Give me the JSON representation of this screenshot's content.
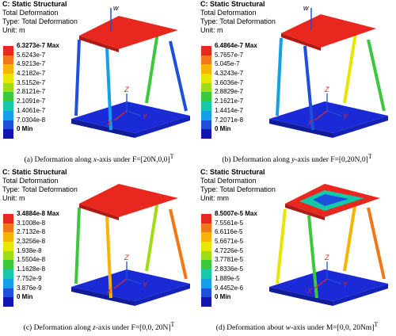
{
  "panels": [
    {
      "header": {
        "title": "C: Static Structural",
        "line2": "Total Deformation",
        "line3": "Type: Total Deformation",
        "line4": "Unit: m"
      },
      "legend": [
        "6.3273e-7 Max",
        "5.6243e-7",
        "4.9213e-7",
        "4.2182e-7",
        "3.5152e-7",
        "2.8121e-7",
        "2.1091e-7",
        "1.4061e-7",
        "7.0304e-8",
        "0 Min"
      ],
      "caption": {
        "prefix": "(a) Deformation along ",
        "axis": "x",
        "middle": "-axis under F=[20N,0,0]",
        "sup": "T"
      }
    },
    {
      "header": {
        "title": "C: Static Structural",
        "line2": "Total Deformation",
        "line3": "Type: Total Deformation",
        "line4": "Unit: m"
      },
      "legend": [
        "6.4864e-7 Max",
        "5.7657e-7",
        "5.045e-7",
        "4.3243e-7",
        "3.6036e-7",
        "2.8829e-7",
        "2.1621e-7",
        "1.4414e-7",
        "7.2071e-8",
        "0 Min"
      ],
      "caption": {
        "prefix": "(b) Deformation along ",
        "axis": "y",
        "middle": "-axis under F=[0,20N,0]",
        "sup": "T"
      }
    },
    {
      "header": {
        "title": "C: Static Structural",
        "line2": "Total Deformation",
        "line3": "Type: Total Deformation",
        "line4": "Unit: m"
      },
      "legend": [
        "3.4884e-8 Max",
        "3.1008e-8",
        "2.7132e-8",
        "2.3256e-8",
        "1.938e-8",
        "1.5504e-8",
        "1.1628e-8",
        "7.752e-9",
        "3.876e-9",
        "0 Min"
      ],
      "caption": {
        "prefix": "(c) Deformation along ",
        "axis": "z",
        "middle": "-axis under F=[0,0, 20N]",
        "sup": "T"
      }
    },
    {
      "header": {
        "title": "C: Static Structural",
        "line2": "Total Deformation",
        "line3": "Type: Total Deformation",
        "line4": "Unit: mm"
      },
      "legend": [
        "8.5007e-5 Max",
        "7.5561e-5",
        "6.6116e-5",
        "5.6671e-5",
        "4.7226e-5",
        "3.7781e-5",
        "2.8336e-5",
        "1.889e-5",
        "9.4452e-6",
        "0 Min"
      ],
      "caption": {
        "prefix": "(d) Deformation about ",
        "axis": "w",
        "middle": "-axis under M=[0,0, 20Nm]",
        "sup": "T"
      }
    }
  ],
  "axis_labels": {
    "z": "Z",
    "x": "X",
    "y": "Y",
    "w": "w"
  },
  "legend_colors": [
    "#e8281e",
    "#f07818",
    "#f5b400",
    "#e6e600",
    "#a0dc14",
    "#3cc83c",
    "#14c8aa",
    "#14a0e6",
    "#1e50dc",
    "#1414b4"
  ]
}
